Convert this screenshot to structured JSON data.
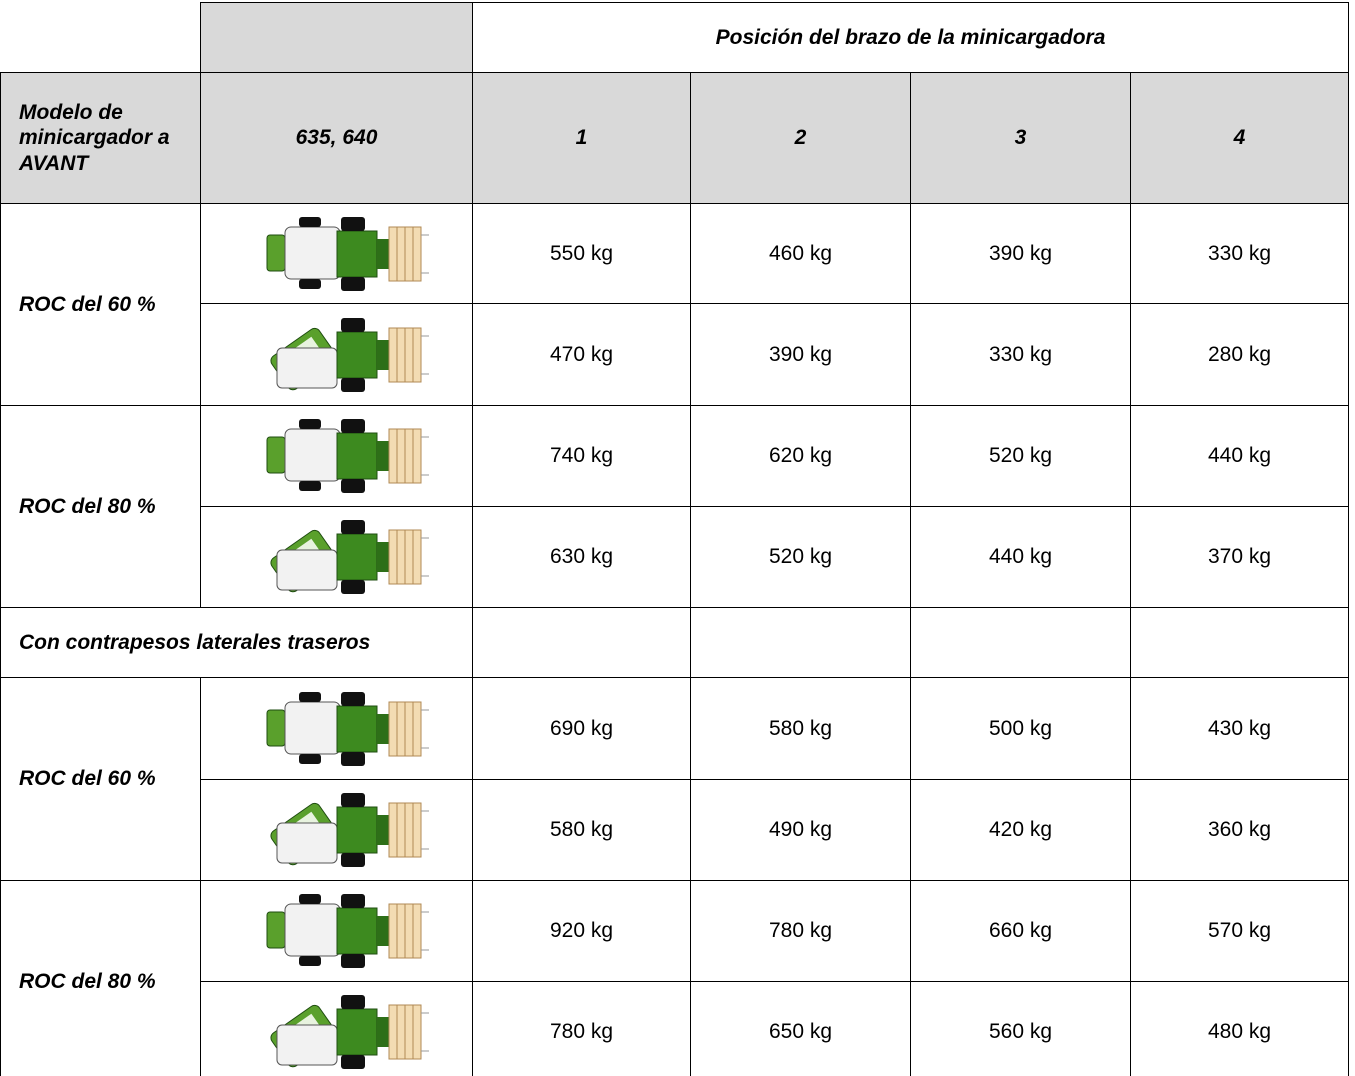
{
  "table": {
    "header_title": "Posición del brazo de la minicargadora",
    "model_label": "Modelo de minicargador a AVANT",
    "model_value": "635, 640",
    "positions": [
      "1",
      "2",
      "3",
      "4"
    ],
    "groups": [
      {
        "label": "ROC del 60 %",
        "rows": [
          [
            "550 kg",
            "460 kg",
            "390 kg",
            "330 kg"
          ],
          [
            "470 kg",
            "390 kg",
            "330 kg",
            "280 kg"
          ]
        ]
      },
      {
        "label": "ROC del 80 %",
        "rows": [
          [
            "740 kg",
            "620 kg",
            "520 kg",
            "440 kg"
          ],
          [
            "630 kg",
            "520 kg",
            "440 kg",
            "370 kg"
          ]
        ]
      }
    ],
    "counterweight_label": "Con contrapesos laterales traseros",
    "counterweight_groups": [
      {
        "label": "ROC del 60 %",
        "rows": [
          [
            "690 kg",
            "580 kg",
            "500 kg",
            "430 kg"
          ],
          [
            "580 kg",
            "490 kg",
            "420 kg",
            "360 kg"
          ]
        ]
      },
      {
        "label": "ROC del 80 %",
        "rows": [
          [
            "920 kg",
            "780 kg",
            "660 kg",
            "570 kg"
          ],
          [
            "780 kg",
            "650 kg",
            "560 kg",
            "480 kg"
          ]
        ]
      }
    ]
  }
}
